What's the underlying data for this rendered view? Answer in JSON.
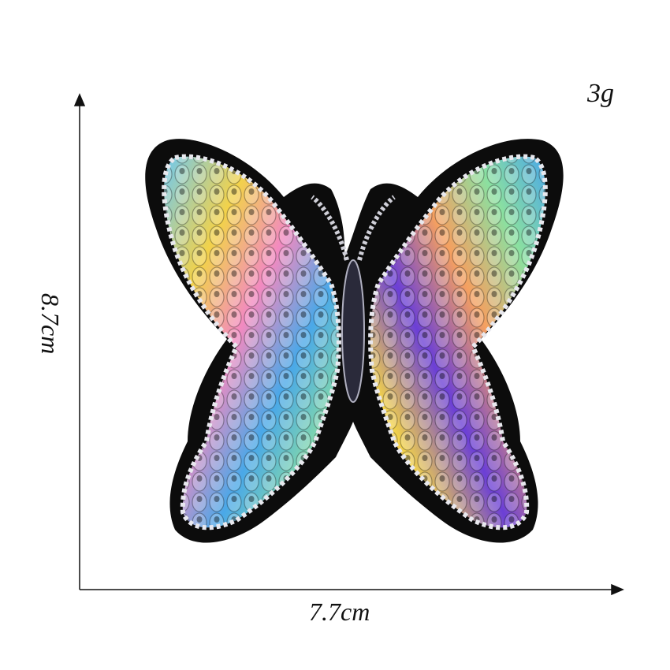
{
  "labels": {
    "weight": "3g",
    "width": "7.7cm",
    "height": "8.7cm"
  },
  "subject": {
    "icon": "butterfly-sequin-patch-icon"
  },
  "colors": {
    "patch_border": "#0c0c0c",
    "sequin_purple": "#6b3fd6",
    "sequin_blue": "#4aa8e8",
    "sequin_yellow": "#f2d24a",
    "sequin_pink": "#f28ac0",
    "sequin_green": "#8be0a0",
    "sequin_orange": "#f5a060"
  }
}
